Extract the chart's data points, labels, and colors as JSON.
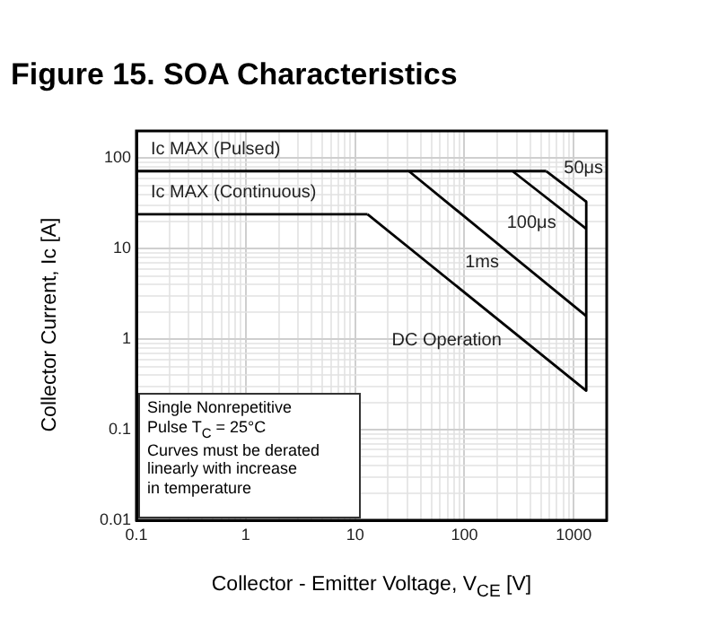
{
  "chart_data": {
    "type": "line",
    "title": "Figure 15. SOA Characteristics",
    "xlabel": "Collector - Emitter Voltage, V$_{CE}$ [V]",
    "ylabel": "Collector Current, Ic [A]",
    "log": "xy",
    "grid": true,
    "legend": false,
    "marker": "none",
    "line_style": "solid",
    "xlim": [
      0.1,
      2000
    ],
    "ylim": [
      0.01,
      200
    ],
    "xticks": [
      {
        "value": 0.1,
        "label": "0.1"
      },
      {
        "value": 0.2,
        "label": null
      },
      {
        "value": 0.3,
        "label": null
      },
      {
        "value": 0.4,
        "label": null
      },
      {
        "value": 0.5,
        "label": null
      },
      {
        "value": 0.6,
        "label": null
      },
      {
        "value": 0.7,
        "label": null
      },
      {
        "value": 0.8,
        "label": null
      },
      {
        "value": 0.9,
        "label": null
      },
      1,
      {
        "value": 2,
        "label": null
      },
      {
        "value": 3,
        "label": null
      },
      {
        "value": 4,
        "label": null
      },
      {
        "value": 5,
        "label": null
      },
      {
        "value": 6,
        "label": null
      },
      {
        "value": 7,
        "label": null
      },
      {
        "value": 8,
        "label": null
      },
      {
        "value": 9,
        "label": null
      },
      10,
      {
        "value": 20,
        "label": null
      },
      {
        "value": 30,
        "label": null
      },
      {
        "value": 40,
        "label": null
      },
      {
        "value": 50,
        "label": null
      },
      {
        "value": 60,
        "label": null
      },
      {
        "value": 70,
        "label": null
      },
      {
        "value": 80,
        "label": null
      },
      {
        "value": 90,
        "label": null
      },
      100,
      {
        "value": 200,
        "label": null
      },
      {
        "value": 300,
        "label": null
      },
      {
        "value": 400,
        "label": null
      },
      {
        "value": 500,
        "label": null
      },
      {
        "value": 600,
        "label": null
      },
      {
        "value": 700,
        "label": null
      },
      {
        "value": 800,
        "label": null
      },
      {
        "value": 900,
        "label": null
      },
      1000
    ],
    "yticks": [
      {
        "value": 0.01,
        "label": "0.01"
      },
      {
        "value": 0.02,
        "label": null
      },
      {
        "value": 0.03,
        "label": null
      },
      {
        "value": 0.04,
        "label": null
      },
      {
        "value": 0.05,
        "label": null
      },
      {
        "value": 0.06,
        "label": null
      },
      {
        "value": 0.07,
        "label": null
      },
      {
        "value": 0.08,
        "label": null
      },
      {
        "value": 0.09,
        "label": null
      },
      {
        "value": 0.1,
        "label": "0.1"
      },
      {
        "value": 0.2,
        "label": null
      },
      {
        "value": 0.3,
        "label": null
      },
      {
        "value": 0.4,
        "label": null
      },
      {
        "value": 0.5,
        "label": null
      },
      {
        "value": 0.6,
        "label": null
      },
      {
        "value": 0.7,
        "label": null
      },
      {
        "value": 0.8,
        "label": null
      },
      {
        "value": 0.9,
        "label": null
      },
      1,
      {
        "value": 2,
        "label": null
      },
      {
        "value": 3,
        "label": null
      },
      {
        "value": 4,
        "label": null
      },
      {
        "value": 5,
        "label": null
      },
      {
        "value": 6,
        "label": null
      },
      {
        "value": 7,
        "label": null
      },
      {
        "value": 8,
        "label": null
      },
      {
        "value": 9,
        "label": null
      },
      10,
      {
        "value": 20,
        "label": null
      },
      {
        "value": 30,
        "label": null
      },
      {
        "value": 40,
        "label": null
      },
      {
        "value": 50,
        "label": null
      },
      {
        "value": 60,
        "label": null
      },
      {
        "value": 70,
        "label": null
      },
      {
        "value": 80,
        "label": null
      },
      {
        "value": 90,
        "label": null
      },
      100
    ],
    "series": [
      {
        "name": "Ic MAX (Pulsed)",
        "color": "#000000",
        "x": [
          0.1,
          560
        ],
        "values": [
          72,
          72
        ]
      },
      {
        "name": "50μs",
        "color": "#000000",
        "x": [
          560,
          1300
        ],
        "values": [
          72,
          33
        ]
      },
      {
        "name": "100μs",
        "color": "#000000",
        "x": [
          275,
          1300
        ],
        "values": [
          72,
          16.6
        ]
      },
      {
        "name": "1ms",
        "color": "#000000",
        "x": [
          31,
          1300
        ],
        "values": [
          72,
          1.8
        ]
      },
      {
        "name": "Ic MAX (Continuous)",
        "color": "#000000",
        "x": [
          0.1,
          13
        ],
        "values": [
          24,
          24
        ]
      },
      {
        "name": "DC Operation",
        "color": "#000000",
        "x": [
          13,
          1300
        ],
        "values": [
          24,
          0.27
        ]
      },
      {
        "color": "#000000",
        "x": [
          1300,
          1300
        ],
        "values": [
          33,
          0.27
        ]
      }
    ],
    "annotations": [
      "Single Nonrepetitive\nPulse T$_{C}$ = 25°C\nCurves must be derated\nlinearly with increase\nin temperature"
    ]
  }
}
